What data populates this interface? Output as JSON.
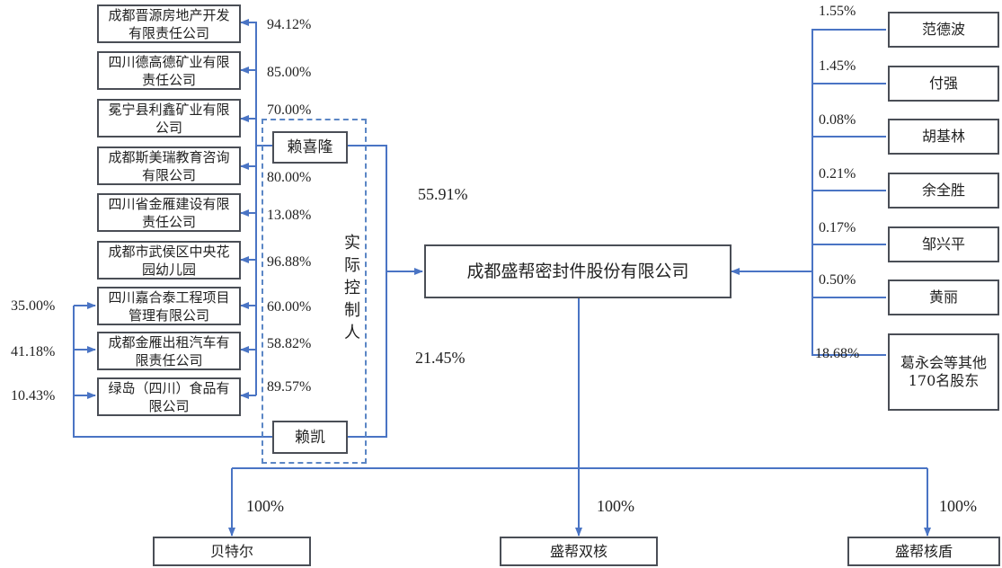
{
  "main_company": "成都盛帮密封件股份有限公司",
  "controllers_label": "实际控制人",
  "controller_1": "赖喜隆",
  "controller_2": "赖凯",
  "controller_1_pct": "55.91%",
  "controller_2_pct": "21.45%",
  "affiliates": [
    {
      "name": "成都晋源房地产开发有限责任公司",
      "pct": "94.12%"
    },
    {
      "name": "四川德高德矿业有限责任公司",
      "pct": "85.00%"
    },
    {
      "name": "冕宁县利鑫矿业有限公司",
      "pct": "70.00%"
    },
    {
      "name": "成都斯美瑞教育咨询有限公司",
      "pct": "80.00%"
    },
    {
      "name": "四川省金雁建设有限责任公司",
      "pct": "13.08%"
    },
    {
      "name": "成都市武侯区中央花园幼儿园",
      "pct": "96.88%"
    },
    {
      "name": "四川嘉合泰工程项目管理有限公司",
      "pct": "60.00%",
      "kai_pct": "35.00%"
    },
    {
      "name": "成都金雁出租汽车有限责任公司",
      "pct": "58.82%",
      "kai_pct": "41.18%"
    },
    {
      "name": "绿岛（四川）食品有限公司",
      "pct": "89.57%",
      "kai_pct": "10.43%"
    }
  ],
  "shareholders": [
    {
      "name": "范德波",
      "pct": "1.55%"
    },
    {
      "name": "付强",
      "pct": "1.45%"
    },
    {
      "name": "胡基林",
      "pct": "0.08%"
    },
    {
      "name": "余全胜",
      "pct": "0.21%"
    },
    {
      "name": "邹兴平",
      "pct": "0.17%"
    },
    {
      "name": "黄丽",
      "pct": "0.50%"
    },
    {
      "name": "葛永会等其他170名股东",
      "pct": "18.68%"
    }
  ],
  "subsidiaries": [
    {
      "name": "贝特尔",
      "pct": "100%"
    },
    {
      "name": "盛帮双核",
      "pct": "100%"
    },
    {
      "name": "盛帮核盾",
      "pct": "100%"
    }
  ],
  "colors": {
    "line": "#4a74c4",
    "box_border": "#4a4e56",
    "dashed": "#5b86c5"
  }
}
